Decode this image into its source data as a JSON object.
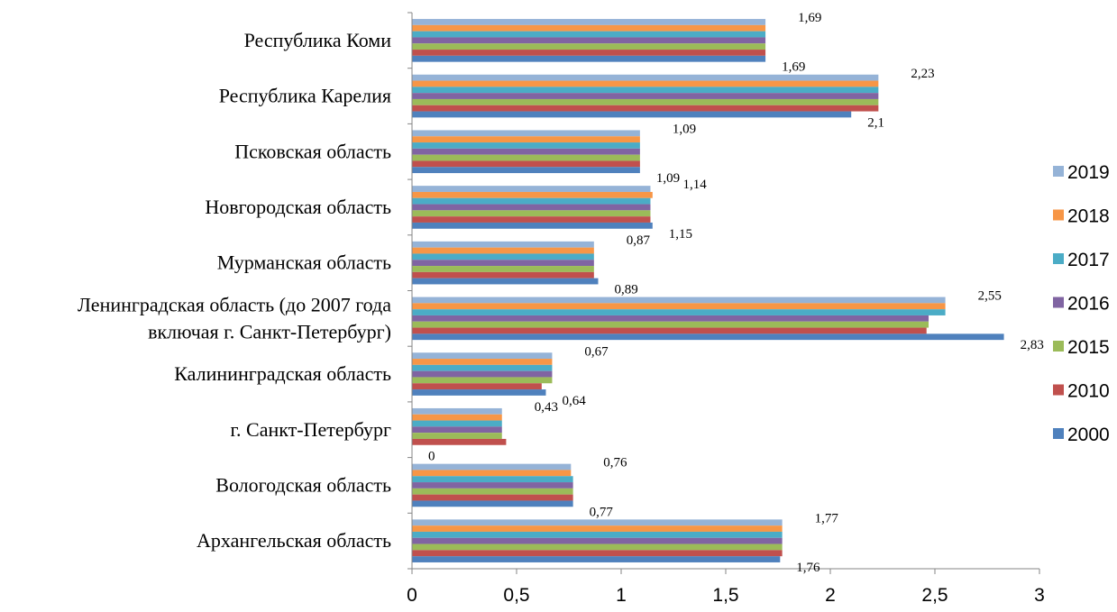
{
  "chart_data": {
    "type": "bar",
    "orientation": "horizontal",
    "categories": [
      "Республика Коми",
      "Республика Карелия",
      "Псковская область",
      "Новгородская область",
      "Мурманская область",
      "Ленинградская область (до 2007 года включая г. Санкт-Петербург)",
      "Калининградская область",
      "г. Санкт-Петербург",
      "Вологодская область",
      "Архангельская область"
    ],
    "category_lines": [
      [
        "Республика Коми"
      ],
      [
        "Республика Карелия"
      ],
      [
        "Псковская область"
      ],
      [
        "Новгородская область"
      ],
      [
        "Мурманская область"
      ],
      [
        "Ленинградская область (до 2007 года",
        "включая г. Санкт-Петербург)"
      ],
      [
        "Калининградская область"
      ],
      [
        "г. Санкт-Петербург"
      ],
      [
        "Вологодская область"
      ],
      [
        "Архангельская область"
      ]
    ],
    "series": [
      {
        "name": "2019",
        "color": "#95B3D7",
        "values": [
          1.69,
          2.23,
          1.09,
          1.14,
          0.87,
          2.55,
          0.67,
          0.43,
          0.76,
          1.77
        ]
      },
      {
        "name": "2018",
        "color": "#F79646",
        "values": [
          1.69,
          2.23,
          1.09,
          1.15,
          0.87,
          2.55,
          0.67,
          0.43,
          0.76,
          1.77
        ]
      },
      {
        "name": "2017",
        "color": "#4BACC6",
        "values": [
          1.69,
          2.23,
          1.09,
          1.14,
          0.87,
          2.55,
          0.67,
          0.43,
          0.77,
          1.77
        ]
      },
      {
        "name": "2016",
        "color": "#8064A2",
        "values": [
          1.69,
          2.23,
          1.09,
          1.14,
          0.87,
          2.47,
          0.67,
          0.43,
          0.77,
          1.77
        ]
      },
      {
        "name": "2015",
        "color": "#9BBB59",
        "values": [
          1.69,
          2.23,
          1.09,
          1.14,
          0.87,
          2.47,
          0.67,
          0.43,
          0.77,
          1.77
        ]
      },
      {
        "name": "2010",
        "color": "#C0504D",
        "values": [
          1.69,
          2.23,
          1.09,
          1.14,
          0.87,
          2.46,
          0.62,
          0.45,
          0.77,
          1.77
        ]
      },
      {
        "name": "2000",
        "color": "#4F81BD",
        "values": [
          1.69,
          2.1,
          1.09,
          1.15,
          0.89,
          2.83,
          0.64,
          0,
          0.77,
          1.76
        ]
      }
    ],
    "data_labels": [
      {
        "top": "1,69",
        "bottom": "1,69"
      },
      {
        "top": "2,23",
        "bottom": "2,1"
      },
      {
        "top": "1,09",
        "bottom": "1,09"
      },
      {
        "top": "1,14",
        "bottom": "1,15"
      },
      {
        "top": "0,87",
        "bottom": "0,89"
      },
      {
        "top": "2,55",
        "bottom": "2,83"
      },
      {
        "top": "0,67",
        "bottom": "0,64"
      },
      {
        "top": "0,43",
        "bottom": "0"
      },
      {
        "top": "0,76",
        "bottom": "0,77"
      },
      {
        "top": "1,77",
        "bottom": "1,76"
      }
    ],
    "xlim": [
      0,
      3
    ],
    "x_ticks": [
      0,
      0.5,
      1,
      1.5,
      2,
      2.5,
      3
    ],
    "x_tick_labels": [
      "0",
      "0,5",
      "1",
      "1,5",
      "2",
      "2,5",
      "3"
    ],
    "legend_position": "right",
    "legend_order": [
      "2019",
      "2018",
      "2017",
      "2016",
      "2015",
      "2010",
      "2000"
    ],
    "grid": false
  }
}
